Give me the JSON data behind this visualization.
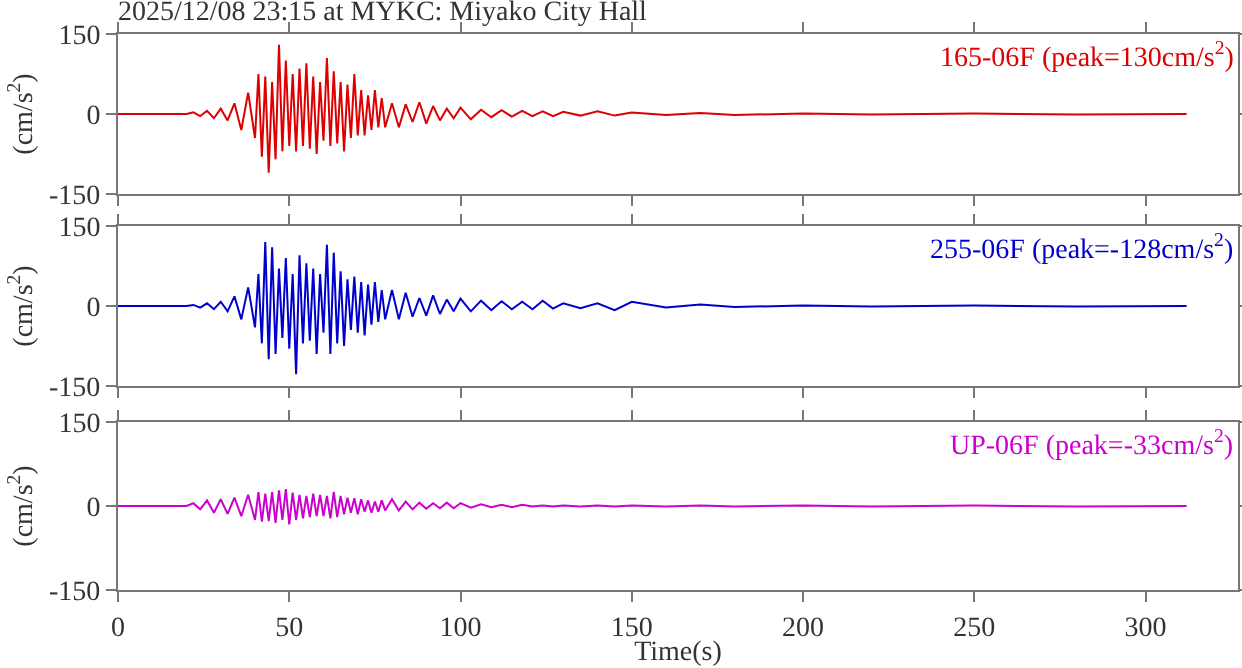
{
  "chart_data": [
    {
      "type": "line",
      "title": "2025/12/08 23:15 at MYKC: Miyako City Hall",
      "ylabel": "(cm/s$^{2}$)",
      "annotations": [
        "165-06F (peak=130cm/s$^{2}$)"
      ],
      "xlim": [
        0,
        327
      ],
      "xticks": [
        0,
        50,
        100,
        150,
        200,
        250,
        300
      ],
      "ylim": [
        -150,
        150
      ],
      "yticks": [
        -150,
        0,
        150
      ],
      "tick_labels": "y",
      "x": [
        0,
        20,
        22,
        24,
        26,
        28,
        30,
        32,
        34,
        36,
        38,
        40,
        41,
        42,
        43,
        44,
        45,
        46,
        47,
        48,
        49,
        50,
        51,
        52,
        53,
        54,
        55,
        56,
        57,
        58,
        59,
        60,
        61,
        62,
        63,
        64,
        65,
        66,
        67,
        68,
        69,
        70,
        71,
        72,
        73,
        74,
        75,
        76,
        77,
        78,
        80,
        82,
        84,
        86,
        88,
        90,
        92,
        94,
        96,
        98,
        100,
        103,
        106,
        109,
        112,
        115,
        118,
        121,
        124,
        127,
        130,
        135,
        140,
        145,
        150,
        160,
        170,
        180,
        200,
        220,
        250,
        280,
        312
      ],
      "series": [
        {
          "color": "#dd0000",
          "values": [
            0,
            0,
            3,
            -4,
            6,
            -8,
            10,
            -12,
            20,
            -30,
            40,
            -45,
            75,
            -80,
            70,
            -110,
            60,
            -85,
            130,
            -70,
            100,
            -60,
            75,
            -70,
            85,
            -60,
            95,
            -65,
            70,
            -75,
            60,
            -50,
            105,
            -60,
            80,
            -55,
            60,
            -70,
            55,
            -45,
            75,
            -40,
            45,
            -40,
            35,
            -30,
            45,
            -25,
            30,
            -25,
            20,
            -25,
            18,
            -15,
            22,
            -18,
            15,
            -12,
            10,
            -8,
            12,
            -10,
            8,
            -6,
            7,
            -5,
            6,
            -4,
            5,
            -4,
            4,
            -3,
            5,
            -3,
            3,
            -2,
            2,
            -2,
            1,
            -1,
            1,
            -1,
            0
          ]
        }
      ]
    },
    {
      "type": "line",
      "ylabel": "(cm/s$^{2}$)",
      "annotations": [
        "255-06F (peak=-128cm/s$^{2}$)"
      ],
      "xlim": [
        0,
        327
      ],
      "xticks": [
        0,
        50,
        100,
        150,
        200,
        250,
        300
      ],
      "ylim": [
        -150,
        150
      ],
      "yticks": [
        -150,
        0,
        150
      ],
      "tick_labels": "y",
      "x": [
        0,
        20,
        22,
        24,
        26,
        28,
        30,
        32,
        34,
        36,
        38,
        40,
        41,
        42,
        43,
        44,
        45,
        46,
        47,
        48,
        49,
        50,
        51,
        52,
        53,
        54,
        55,
        56,
        57,
        58,
        59,
        60,
        61,
        62,
        63,
        64,
        65,
        66,
        67,
        68,
        69,
        70,
        71,
        72,
        73,
        74,
        75,
        76,
        77,
        78,
        80,
        82,
        84,
        86,
        88,
        90,
        92,
        94,
        96,
        98,
        100,
        103,
        106,
        109,
        112,
        115,
        118,
        121,
        124,
        127,
        130,
        135,
        140,
        145,
        150,
        160,
        170,
        180,
        200,
        220,
        250,
        280,
        312
      ],
      "series": [
        {
          "color": "#0000cc",
          "values": [
            0,
            0,
            2,
            -3,
            5,
            -6,
            8,
            -10,
            18,
            -25,
            35,
            -40,
            60,
            -70,
            120,
            -100,
            110,
            -90,
            70,
            -60,
            90,
            -80,
            60,
            -128,
            95,
            -70,
            80,
            -65,
            70,
            -90,
            60,
            -50,
            115,
            -90,
            100,
            -70,
            65,
            -75,
            50,
            -45,
            55,
            -50,
            45,
            -55,
            40,
            -35,
            45,
            -30,
            30,
            -25,
            30,
            -25,
            25,
            -20,
            15,
            -18,
            20,
            -15,
            12,
            -10,
            14,
            -10,
            10,
            -8,
            9,
            -6,
            8,
            -6,
            10,
            -5,
            5,
            -4,
            5,
            -8,
            8,
            -3,
            3,
            -2,
            1,
            -1,
            1,
            -1,
            0
          ]
        }
      ]
    },
    {
      "type": "line",
      "ylabel": "(cm/s$^{2}$)",
      "xlabel": "Time(s)",
      "annotations": [
        "UP-06F (peak=-33cm/s$^{2}$)"
      ],
      "xlim": [
        0,
        327
      ],
      "xticks": [
        0,
        50,
        100,
        150,
        200,
        250,
        300
      ],
      "ylim": [
        -150,
        150
      ],
      "yticks": [
        -150,
        0,
        150
      ],
      "x": [
        0,
        20,
        22,
        24,
        26,
        28,
        30,
        32,
        34,
        36,
        38,
        40,
        41,
        42,
        43,
        44,
        45,
        46,
        47,
        48,
        49,
        50,
        51,
        52,
        53,
        54,
        55,
        56,
        57,
        58,
        59,
        60,
        61,
        62,
        63,
        64,
        65,
        66,
        67,
        68,
        69,
        70,
        71,
        72,
        73,
        74,
        75,
        76,
        77,
        78,
        80,
        82,
        84,
        86,
        88,
        90,
        92,
        94,
        96,
        98,
        100,
        103,
        106,
        109,
        112,
        115,
        118,
        121,
        124,
        127,
        130,
        135,
        140,
        145,
        150,
        160,
        170,
        180,
        200,
        220,
        250,
        280,
        312
      ],
      "series": [
        {
          "color": "#cc00cc",
          "values": [
            0,
            0,
            5,
            -6,
            10,
            -12,
            12,
            -14,
            15,
            -18,
            20,
            -25,
            25,
            -28,
            22,
            -27,
            25,
            -30,
            28,
            -25,
            30,
            -33,
            24,
            -25,
            20,
            -22,
            18,
            -20,
            22,
            -18,
            20,
            -18,
            18,
            -22,
            25,
            -20,
            18,
            -15,
            15,
            -12,
            14,
            -15,
            12,
            -10,
            10,
            -12,
            8,
            -10,
            10,
            -8,
            12,
            -8,
            8,
            -6,
            6,
            -5,
            5,
            -4,
            6,
            -4,
            5,
            -3,
            3,
            -2,
            2,
            -2,
            2,
            -1,
            1,
            -1,
            1,
            -1,
            1,
            -1,
            1,
            -1,
            1,
            -1,
            1,
            -1,
            1,
            -1,
            0
          ]
        }
      ]
    }
  ]
}
